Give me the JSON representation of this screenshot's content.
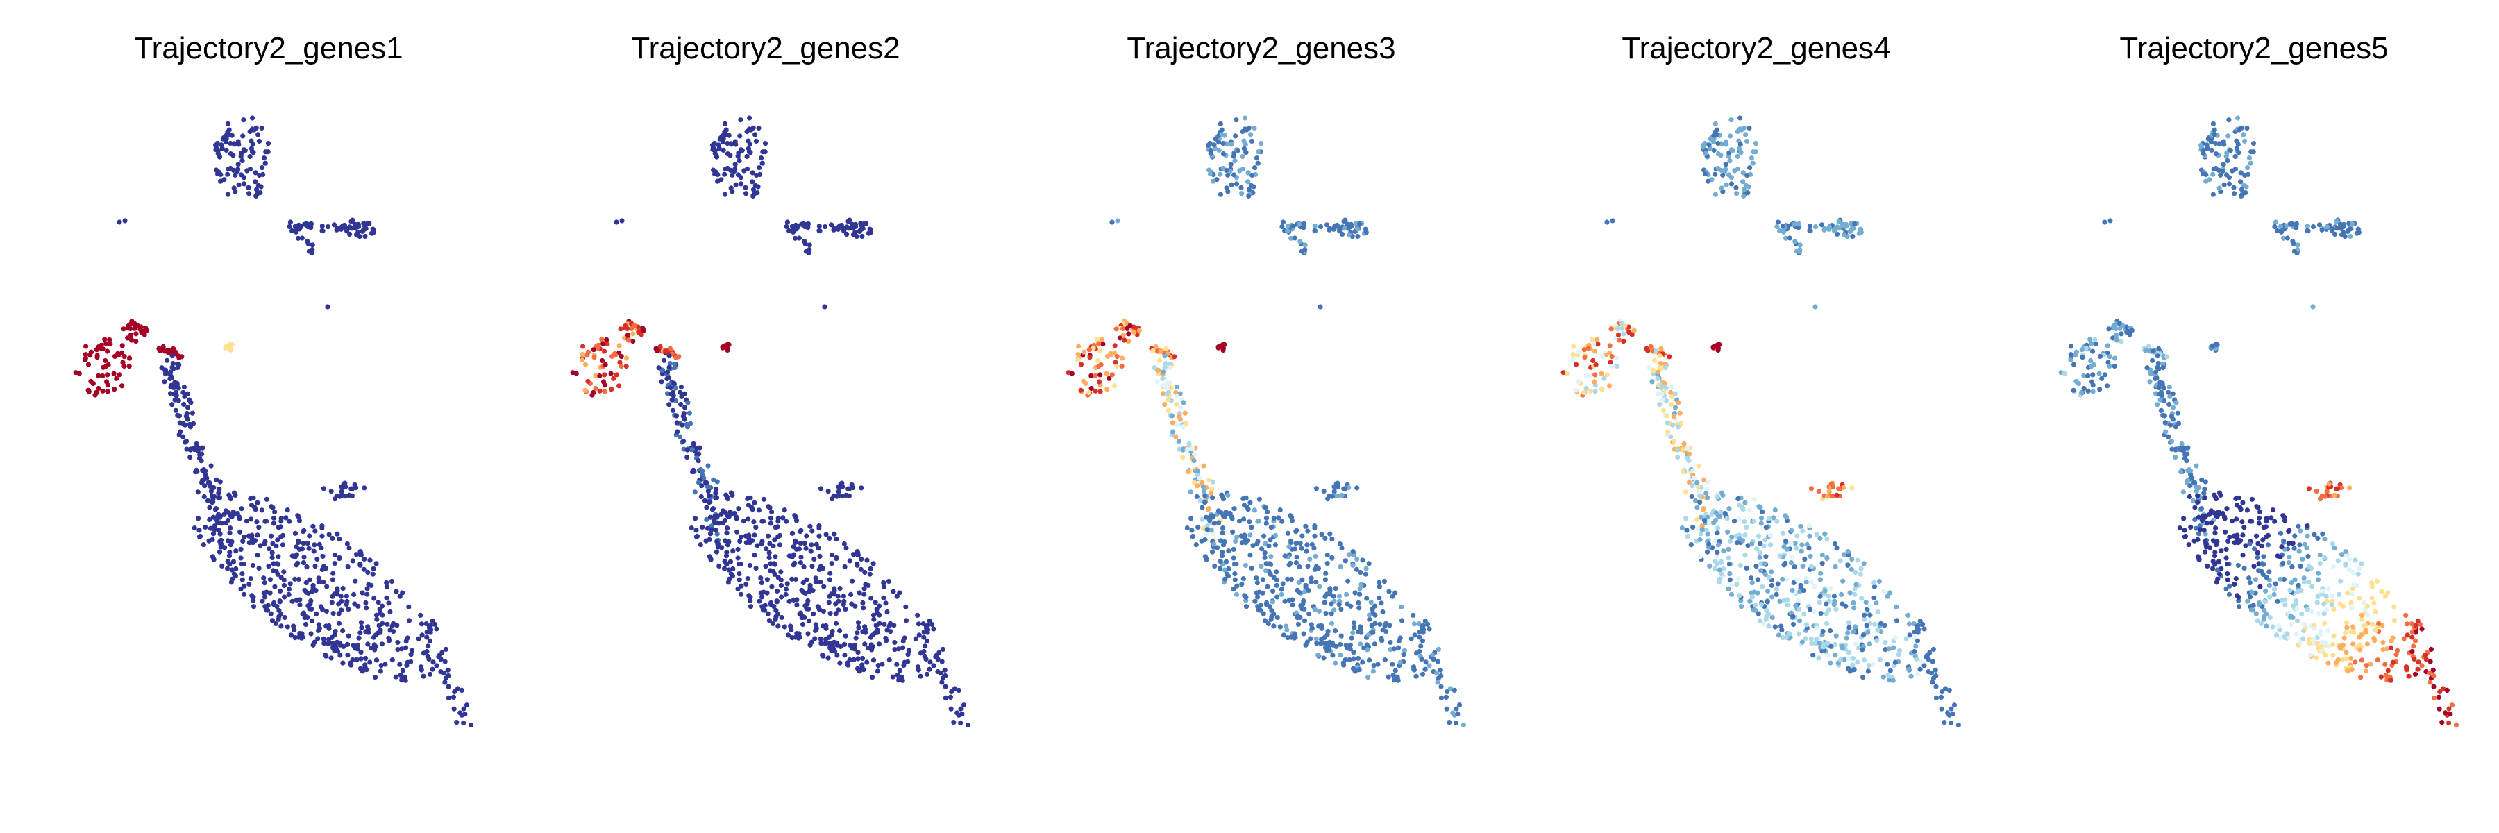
{
  "chart_data": [
    {
      "type": "scatter",
      "title": "Trajectory2_genes1",
      "xlabel": "",
      "ylabel": "",
      "axes_visible": false,
      "grid": false,
      "legend": "none",
      "colormap": [
        "#313695",
        "#4575b4",
        "#74add1",
        "#abd9e9",
        "#e0f3f8",
        "#fee090",
        "#fdae61",
        "#f46d43",
        "#d73027",
        "#a50026"
      ],
      "expression_pattern": "high only in far-left branch"
    },
    {
      "type": "scatter",
      "title": "Trajectory2_genes2",
      "xlabel": "",
      "ylabel": "",
      "axes_visible": false,
      "grid": false,
      "legend": "none",
      "colormap": [
        "#313695",
        "#4575b4",
        "#74add1",
        "#abd9e9",
        "#e0f3f8",
        "#fee090",
        "#fdae61",
        "#f46d43",
        "#d73027",
        "#a50026"
      ],
      "expression_pattern": "high in left branch and small satellite cluster"
    },
    {
      "type": "scatter",
      "title": "Trajectory2_genes3",
      "xlabel": "",
      "ylabel": "",
      "axes_visible": false,
      "grid": false,
      "legend": "none",
      "colormap": [
        "#313695",
        "#4575b4",
        "#74add1",
        "#abd9e9",
        "#e0f3f8",
        "#fee090",
        "#fdae61",
        "#f46d43",
        "#d73027",
        "#a50026"
      ],
      "expression_pattern": "high in left branch, moderate along upper trajectory"
    },
    {
      "type": "scatter",
      "title": "Trajectory2_genes4",
      "xlabel": "",
      "ylabel": "",
      "axes_visible": false,
      "grid": false,
      "legend": "none",
      "colormap": [
        "#313695",
        "#4575b4",
        "#74add1",
        "#abd9e9",
        "#e0f3f8",
        "#fee090",
        "#fdae61",
        "#f46d43",
        "#d73027",
        "#a50026"
      ],
      "expression_pattern": "moderate in upper and middle trajectory"
    },
    {
      "type": "scatter",
      "title": "Trajectory2_genes5",
      "xlabel": "",
      "ylabel": "",
      "axes_visible": false,
      "grid": false,
      "legend": "none",
      "colormap": [
        "#313695",
        "#4575b4",
        "#74add1",
        "#abd9e9",
        "#e0f3f8",
        "#fee090",
        "#fdae61",
        "#f46d43",
        "#d73027",
        "#a50026"
      ],
      "expression_pattern": "high toward lower-right tip of trajectory"
    }
  ]
}
